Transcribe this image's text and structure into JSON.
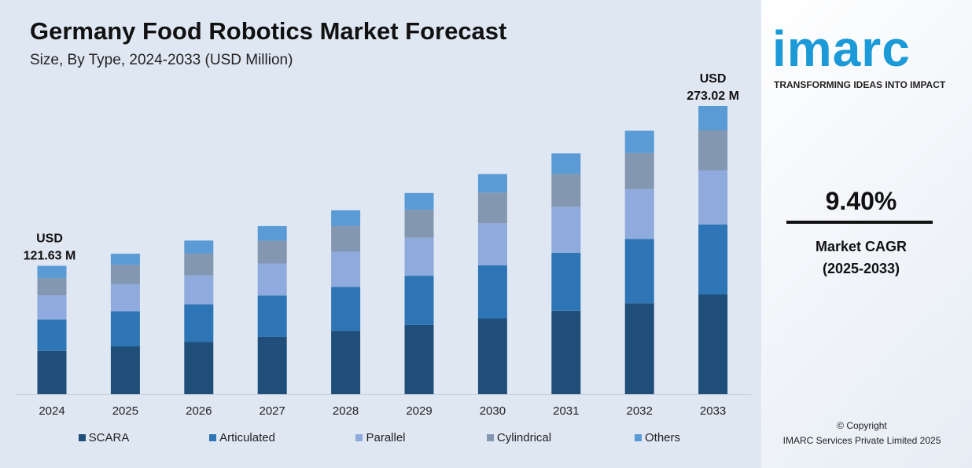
{
  "chart_data": {
    "type": "bar",
    "stacked": true,
    "title": "Germany Food Robotics Market Forecast",
    "subtitle": "Size, By Type, 2024-2033 (USD Million)",
    "categories": [
      "2024",
      "2025",
      "2026",
      "2027",
      "2028",
      "2029",
      "2030",
      "2031",
      "2032",
      "2033"
    ],
    "series": [
      {
        "name": "SCARA",
        "color": "#1f4e79",
        "values": [
          41.09,
          45.36,
          49.44,
          54.35,
          60.0,
          65.65,
          71.77,
          79.0,
          86.17,
          94.48
        ]
      },
      {
        "name": "Articulated",
        "color": "#2e75b6",
        "values": [
          29.59,
          33.27,
          35.71,
          39.18,
          41.54,
          46.59,
          50.43,
          55.03,
          60.97,
          66.21
        ]
      },
      {
        "name": "Parallel",
        "color": "#8faadc",
        "values": [
          23.01,
          25.7,
          27.47,
          30.34,
          33.46,
          36.0,
          39.76,
          43.49,
          47.15,
          51.33
        ]
      },
      {
        "name": "Cylindrical",
        "color": "#8497b0",
        "values": [
          16.44,
          18.14,
          20.6,
          21.49,
          24.23,
          26.47,
          29.1,
          31.07,
          34.14,
          37.94
        ]
      },
      {
        "name": "Others",
        "color": "#5b9bd5",
        "values": [
          11.5,
          10.59,
          12.35,
          13.9,
          15.0,
          15.9,
          17.46,
          19.53,
          21.14,
          23.06
        ]
      }
    ],
    "annotations": [
      {
        "category": "2024",
        "line1": "USD",
        "line2": "121.63 M"
      },
      {
        "category": "2033",
        "line1": "USD",
        "line2": "273.02 M"
      }
    ],
    "xlabel": "",
    "ylabel": "",
    "ylim": [
      0,
      273.02
    ],
    "grid": false,
    "legend_position": "bottom"
  },
  "side": {
    "logo": "imarc",
    "tagline": "TRANSFORMING IDEAS INTO IMPACT",
    "cagr_value": "9.40%",
    "cagr_label": "Market CAGR",
    "cagr_period": "(2025-2033)",
    "copyright": "© Copyright",
    "company": "IMARC Services Private Limited 2025"
  }
}
